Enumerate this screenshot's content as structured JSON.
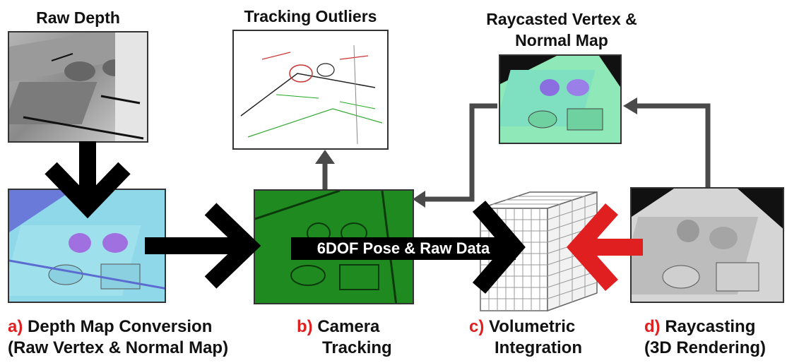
{
  "labels": {
    "raw_depth": "Raw Depth",
    "tracking_outliers": "Tracking Outliers",
    "raycasted_line1": "Raycasted Vertex &",
    "raycasted_line2": "Normal Map",
    "pose_data": "6DOF Pose & Raw Data"
  },
  "steps": [
    {
      "marker": "a)",
      "line1": "Depth Map Conversion",
      "line2": "(Raw Vertex & Normal Map)"
    },
    {
      "marker": "b)",
      "line1": "Camera",
      "line2": "Tracking"
    },
    {
      "marker": "c)",
      "line1": "Volumetric",
      "line2": "Integration"
    },
    {
      "marker": "d)",
      "line1": "Raycasting",
      "line2": "(3D Rendering)"
    }
  ],
  "colors": {
    "accent_red": "#e02020",
    "arrow_black": "#000000",
    "arrow_gray": "#4a4a4a",
    "tracking_green": "#1f8a1f",
    "normal_cyan": "#7fd8e6"
  }
}
